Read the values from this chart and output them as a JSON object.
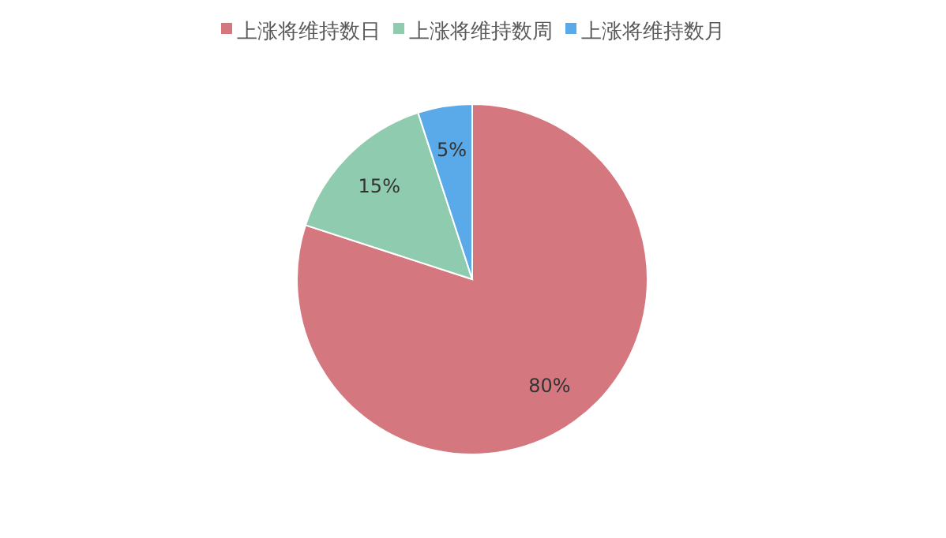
{
  "chart_data": {
    "type": "pie",
    "legend": "top",
    "categories": [
      "上涨将维持数日",
      "上涨将维持数周",
      "上涨将维持数月"
    ],
    "values": [
      80,
      15,
      5
    ],
    "colors": [
      "#d4777f",
      "#8fcbae",
      "#5aa9e8"
    ],
    "value_labels": [
      "80%",
      "15%",
      "5%"
    ]
  }
}
